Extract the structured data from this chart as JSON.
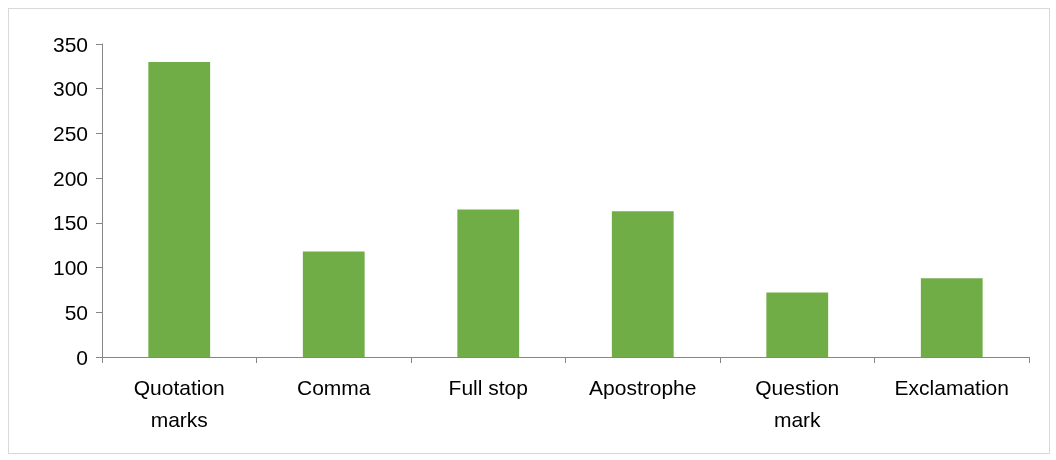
{
  "chart_data": {
    "type": "bar",
    "categories": [
      "Quotation marks",
      "Comma",
      "Full stop",
      "Apostrophe",
      "Question mark",
      "Exclamation"
    ],
    "values": [
      330,
      118,
      165,
      163,
      72,
      88
    ],
    "color": "#70ad47",
    "ylim": [
      0,
      350
    ],
    "yticks": [
      0,
      50,
      100,
      150,
      200,
      250,
      300,
      350
    ],
    "grid": false
  }
}
